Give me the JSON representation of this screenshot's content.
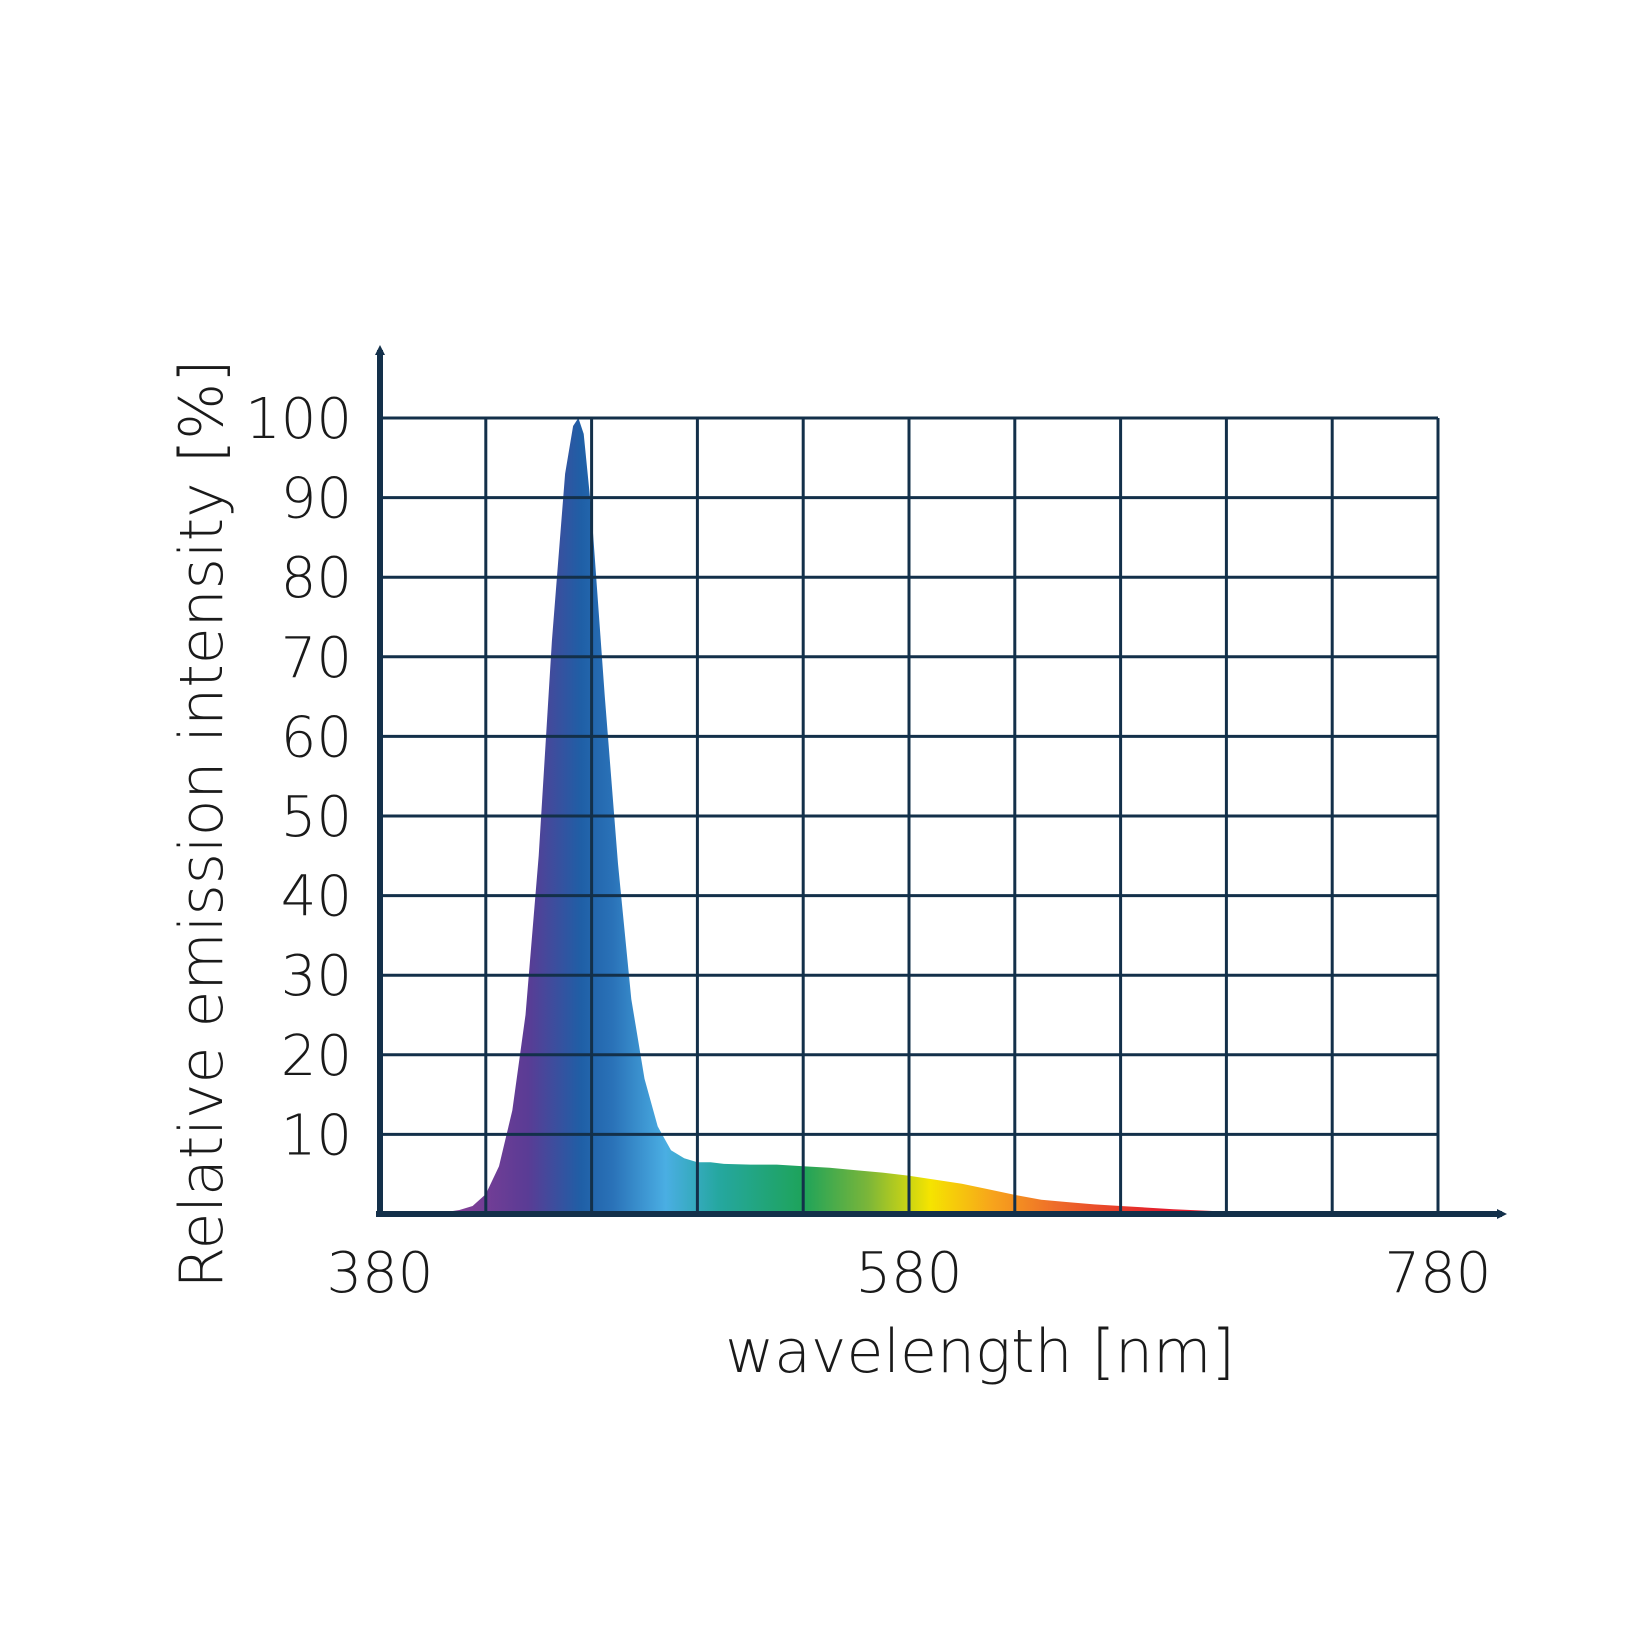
{
  "chart_data": {
    "type": "area",
    "title": "",
    "xlabel": "wavelength [nm]",
    "ylabel": "Relative emission intensity [%]",
    "xlim": [
      380,
      780
    ],
    "ylim": [
      0,
      100
    ],
    "x_ticks": [
      380,
      580,
      780
    ],
    "x_tick_labels": [
      "380",
      "580",
      "780"
    ],
    "y_ticks": [
      10,
      20,
      30,
      40,
      50,
      60,
      70,
      80,
      90,
      100
    ],
    "y_tick_labels": [
      "10",
      "20",
      "30",
      "40",
      "50",
      "60",
      "70",
      "80",
      "90",
      "100"
    ],
    "grid": true,
    "series": [
      {
        "x": [
          380,
          400,
          410,
          415,
          420,
          425,
          430,
          435,
          440,
          445,
          450,
          453,
          455,
          457,
          460,
          465,
          470,
          475,
          480,
          485,
          490,
          495,
          500,
          505,
          510,
          520,
          530,
          540,
          550,
          560,
          570,
          580,
          590,
          600,
          610,
          620,
          630,
          640,
          650,
          660,
          670,
          680,
          700,
          720,
          740,
          760,
          780
        ],
        "y": [
          0,
          0,
          0.5,
          1,
          2.5,
          6,
          13,
          25,
          45,
          72,
          93,
          99,
          100,
          98,
          88,
          65,
          44,
          27,
          17,
          11,
          8,
          7,
          6.5,
          6.5,
          6.3,
          6.2,
          6.2,
          6.0,
          5.8,
          5.5,
          5.2,
          4.8,
          4.3,
          3.8,
          3.1,
          2.4,
          1.8,
          1.5,
          1.2,
          1.0,
          0.8,
          0.6,
          0.3,
          0.1,
          0,
          0,
          0
        ]
      }
    ]
  },
  "colors": {
    "axis": "#13304a",
    "grid": "#13304a",
    "spectrum": [
      "#8a3f96",
      "#5a3c95",
      "#1f5fa6",
      "#2a72b8",
      "#4aaee3",
      "#25a7a0",
      "#1ea35a",
      "#79b53a",
      "#f5e400",
      "#f7a31c",
      "#ee6b2a",
      "#e21c2b"
    ]
  }
}
